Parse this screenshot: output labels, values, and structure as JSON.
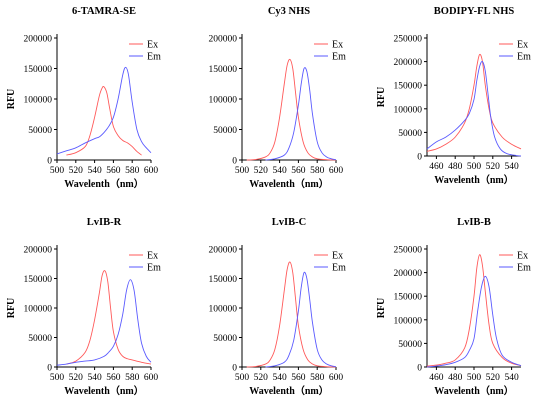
{
  "figure": {
    "background": "#ffffff"
  },
  "colors": {
    "ex": "#ff5a5a",
    "em": "#5a5aff"
  },
  "chart_data": [
    {
      "type": "line",
      "title": "6-TAMRA-SE",
      "xlabel": "Wavelenth（nm）",
      "ylabel": "RFU",
      "xlim": [
        500,
        600
      ],
      "ylim": [
        0,
        200000
      ],
      "xticks": [
        500,
        520,
        540,
        560,
        580,
        600
      ],
      "xtick_labels": [
        "500",
        "520",
        "540",
        "560",
        "580",
        "600"
      ],
      "yticks": [
        0,
        50000,
        100000,
        150000,
        200000
      ],
      "ytick_labels": [
        "0",
        "50000",
        "100000",
        "150000",
        "200000"
      ],
      "legend": "top-right",
      "grid": false,
      "series": [
        {
          "name": "Ex",
          "color": "#ff5a5a",
          "x": [
            510,
            520,
            530,
            535,
            540,
            545,
            548,
            550,
            553,
            556,
            560,
            565,
            570,
            575,
            580,
            585,
            590
          ],
          "y": [
            8000,
            12000,
            22000,
            40000,
            70000,
            105000,
            118000,
            120000,
            110000,
            85000,
            55000,
            40000,
            32000,
            28000,
            22000,
            14000,
            8000
          ]
        },
        {
          "name": "Em",
          "color": "#5a5aff",
          "x": [
            500,
            510,
            520,
            530,
            540,
            545,
            550,
            555,
            560,
            565,
            570,
            573,
            576,
            580,
            585,
            590,
            595,
            600
          ],
          "y": [
            10000,
            15000,
            20000,
            28000,
            35000,
            38000,
            45000,
            55000,
            70000,
            100000,
            140000,
            152000,
            140000,
            95000,
            50000,
            30000,
            20000,
            12000
          ]
        }
      ]
    },
    {
      "type": "line",
      "title": "Cy3 NHS",
      "xlabel": "Wavelenth（nm）",
      "ylabel": "",
      "xlim": [
        500,
        600
      ],
      "ylim": [
        0,
        200000
      ],
      "xticks": [
        500,
        520,
        540,
        560,
        580,
        600
      ],
      "xtick_labels": [
        "500",
        "520",
        "540",
        "560",
        "580",
        "600"
      ],
      "yticks": [
        0,
        50000,
        100000,
        150000,
        200000
      ],
      "ytick_labels": [
        "0",
        "50000",
        "100000",
        "150000",
        "200000"
      ],
      "legend": "top-right",
      "grid": false,
      "series": [
        {
          "name": "Ex",
          "color": "#ff5a5a",
          "x": [
            505,
            515,
            525,
            530,
            535,
            540,
            545,
            548,
            551,
            554,
            557,
            560,
            565,
            570,
            575,
            580,
            590,
            600
          ],
          "y": [
            0,
            1000,
            5000,
            12000,
            30000,
            70000,
            125000,
            155000,
            165000,
            150000,
            110000,
            70000,
            30000,
            12000,
            5000,
            2000,
            500,
            0
          ]
        },
        {
          "name": "Em",
          "color": "#5a5aff",
          "x": [
            525,
            535,
            545,
            550,
            555,
            560,
            563,
            566,
            569,
            572,
            575,
            580,
            585,
            590,
            595,
            600
          ],
          "y": [
            0,
            2000,
            8000,
            20000,
            45000,
            90000,
            125000,
            150000,
            145000,
            115000,
            75000,
            30000,
            12000,
            5000,
            2000,
            500
          ]
        }
      ]
    },
    {
      "type": "line",
      "title": "BODIPY-FL NHS",
      "xlabel": "Wavelenth（nm）",
      "ylabel": "RFU",
      "xlim": [
        450,
        550
      ],
      "ylim": [
        0,
        250000
      ],
      "xticks": [
        460,
        480,
        500,
        520,
        540
      ],
      "xtick_labels": [
        "460",
        "480",
        "500",
        "520",
        "540"
      ],
      "yticks": [
        0,
        50000,
        100000,
        150000,
        200000,
        250000
      ],
      "ytick_labels": [
        "0",
        "50000",
        "100000",
        "150000",
        "200000",
        "250000"
      ],
      "legend": "top-right",
      "grid": false,
      "series": [
        {
          "name": "Ex",
          "color": "#ff5a5a",
          "x": [
            450,
            460,
            470,
            480,
            490,
            495,
            500,
            503,
            506,
            509,
            512,
            516,
            520,
            530,
            540,
            550
          ],
          "y": [
            10000,
            15000,
            25000,
            40000,
            70000,
            100000,
            150000,
            190000,
            215000,
            200000,
            150000,
            100000,
            70000,
            40000,
            25000,
            15000
          ]
        },
        {
          "name": "Em",
          "color": "#5a5aff",
          "x": [
            450,
            460,
            470,
            480,
            490,
            495,
            500,
            503,
            506,
            509,
            512,
            515,
            518,
            522,
            528,
            535,
            545,
            550
          ],
          "y": [
            15000,
            30000,
            40000,
            55000,
            75000,
            90000,
            120000,
            160000,
            190000,
            200000,
            180000,
            130000,
            80000,
            40000,
            15000,
            5000,
            1000,
            0
          ]
        }
      ]
    },
    {
      "type": "line",
      "title": "LvIB-R",
      "xlabel": "Wavelenth（nm）",
      "ylabel": "RFU",
      "xlim": [
        500,
        600
      ],
      "ylim": [
        0,
        200000
      ],
      "xticks": [
        500,
        520,
        540,
        560,
        580,
        600
      ],
      "xtick_labels": [
        "500",
        "520",
        "540",
        "560",
        "580",
        "600"
      ],
      "yticks": [
        0,
        50000,
        100000,
        150000,
        200000
      ],
      "ytick_labels": [
        "0",
        "50000",
        "100000",
        "150000",
        "200000"
      ],
      "legend": "top-right",
      "grid": false,
      "series": [
        {
          "name": "Ex",
          "color": "#ff5a5a",
          "x": [
            510,
            520,
            530,
            535,
            540,
            545,
            548,
            551,
            554,
            557,
            560,
            565,
            570,
            575,
            580,
            590,
            600
          ],
          "y": [
            5000,
            10000,
            25000,
            45000,
            80000,
            125000,
            155000,
            163000,
            145000,
            100000,
            60000,
            30000,
            18000,
            14000,
            12000,
            8000,
            5000
          ]
        },
        {
          "name": "Em",
          "color": "#5a5aff",
          "x": [
            500,
            510,
            520,
            530,
            540,
            550,
            555,
            560,
            565,
            570,
            574,
            578,
            582,
            586,
            590,
            595,
            600
          ],
          "y": [
            3000,
            5000,
            8000,
            10000,
            12000,
            18000,
            25000,
            35000,
            55000,
            90000,
            130000,
            148000,
            130000,
            80000,
            40000,
            18000,
            8000
          ]
        }
      ]
    },
    {
      "type": "line",
      "title": "LvIB-C",
      "xlabel": "Wavelenth（nm）",
      "ylabel": "",
      "xlim": [
        500,
        600
      ],
      "ylim": [
        0,
        200000
      ],
      "xticks": [
        500,
        520,
        540,
        560,
        580,
        600
      ],
      "xtick_labels": [
        "500",
        "520",
        "540",
        "560",
        "580",
        "600"
      ],
      "yticks": [
        0,
        50000,
        100000,
        150000,
        200000
      ],
      "ytick_labels": [
        "0",
        "50000",
        "100000",
        "150000",
        "200000"
      ],
      "legend": "top-right",
      "grid": false,
      "series": [
        {
          "name": "Ex",
          "color": "#ff5a5a",
          "x": [
            505,
            515,
            525,
            530,
            535,
            540,
            545,
            548,
            551,
            554,
            557,
            560,
            565,
            570,
            575,
            580,
            590,
            600
          ],
          "y": [
            0,
            1000,
            5000,
            12000,
            30000,
            70000,
            130000,
            165000,
            178000,
            160000,
            115000,
            70000,
            30000,
            12000,
            5000,
            2000,
            500,
            0
          ]
        },
        {
          "name": "Em",
          "color": "#5a5aff",
          "x": [
            525,
            535,
            545,
            550,
            555,
            560,
            563,
            566,
            569,
            572,
            575,
            580,
            585,
            590,
            595,
            600
          ],
          "y": [
            0,
            2000,
            8000,
            20000,
            45000,
            95000,
            135000,
            160000,
            150000,
            115000,
            75000,
            30000,
            12000,
            5000,
            2000,
            500
          ]
        }
      ]
    },
    {
      "type": "line",
      "title": "LvIB-B",
      "xlabel": "Wavelenth（nm）",
      "ylabel": "RFU",
      "xlim": [
        450,
        550
      ],
      "ylim": [
        0,
        250000
      ],
      "xticks": [
        460,
        480,
        500,
        520,
        540
      ],
      "xtick_labels": [
        "460",
        "480",
        "500",
        "520",
        "540"
      ],
      "yticks": [
        0,
        50000,
        100000,
        150000,
        200000,
        250000
      ],
      "ytick_labels": [
        "0",
        "50000",
        "100000",
        "150000",
        "200000",
        "250000"
      ],
      "legend": "top-right",
      "grid": false,
      "series": [
        {
          "name": "Ex",
          "color": "#ff5a5a",
          "x": [
            450,
            460,
            470,
            480,
            490,
            495,
            500,
            503,
            506,
            509,
            512,
            516,
            520,
            530,
            540,
            550
          ],
          "y": [
            2000,
            4000,
            8000,
            15000,
            40000,
            80000,
            150000,
            210000,
            238000,
            215000,
            160000,
            90000,
            50000,
            20000,
            8000,
            3000
          ]
        },
        {
          "name": "Em",
          "color": "#5a5aff",
          "x": [
            450,
            460,
            470,
            480,
            490,
            495,
            500,
            504,
            508,
            512,
            516,
            520,
            524,
            530,
            540,
            550
          ],
          "y": [
            0,
            2000,
            5000,
            10000,
            20000,
            35000,
            60000,
            120000,
            170000,
            192000,
            170000,
            110000,
            60000,
            25000,
            10000,
            3000
          ]
        }
      ]
    }
  ]
}
